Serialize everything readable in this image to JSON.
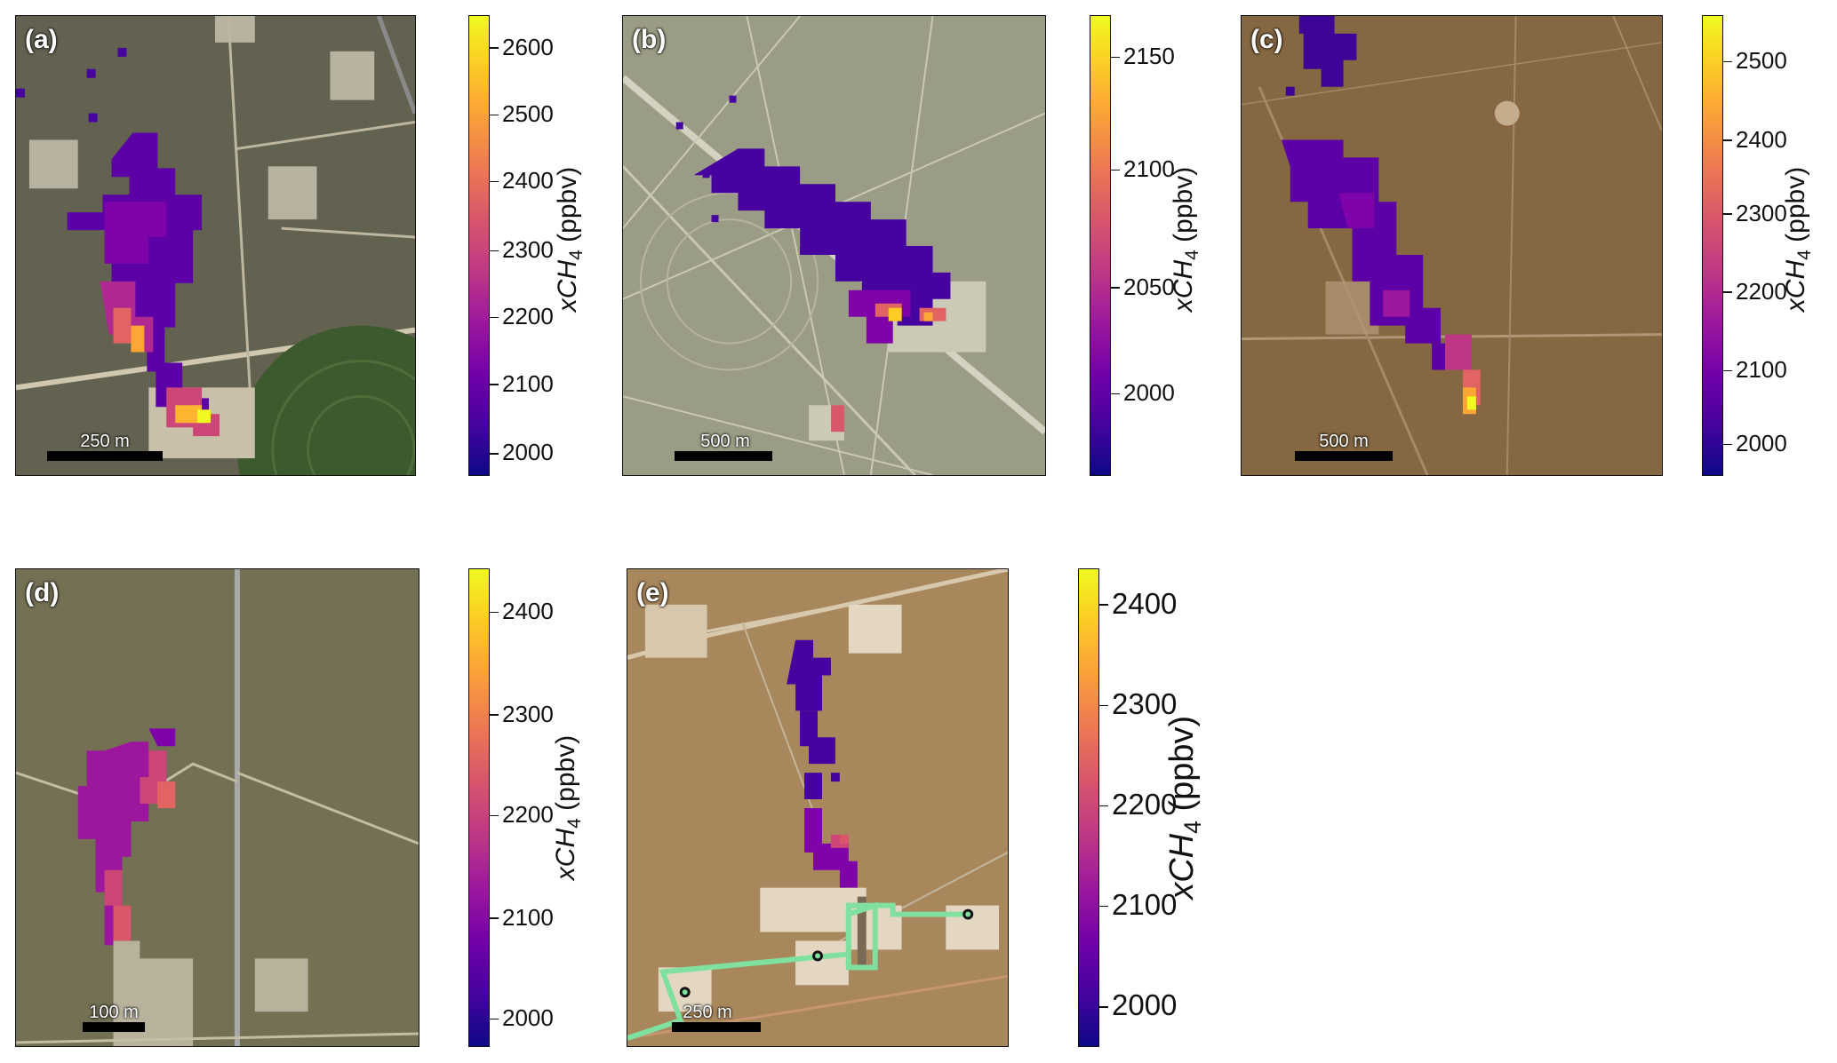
{
  "panels": [
    {
      "label": "(a)",
      "scale": "250 m",
      "colorbar": {
        "ticks": [
          "2000",
          "2100",
          "2200",
          "2300",
          "2400",
          "2500",
          "2600"
        ],
        "label_prefix": "xCH",
        "label_sub": "4",
        "label_suffix": " (ppbv)"
      }
    },
    {
      "label": "(b)",
      "scale": "500 m",
      "colorbar": {
        "ticks": [
          "2000",
          "2050",
          "2100",
          "2150"
        ],
        "label_prefix": "xCH",
        "label_sub": "4",
        "label_suffix": " (ppbv)"
      }
    },
    {
      "label": "(c)",
      "scale": "500 m",
      "colorbar": {
        "ticks": [
          "2000",
          "2100",
          "2200",
          "2300",
          "2400",
          "2500"
        ],
        "label_prefix": "xCH",
        "label_sub": "4",
        "label_suffix": " (ppbv)"
      }
    },
    {
      "label": "(d)",
      "scale": "100 m",
      "colorbar": {
        "ticks": [
          "2000",
          "2100",
          "2200",
          "2300",
          "2400"
        ],
        "label_prefix": "xCH",
        "label_sub": "4",
        "label_suffix": " (ppbv)"
      }
    },
    {
      "label": "(e)",
      "scale": "250 m",
      "colorbar": {
        "ticks": [
          "2000",
          "2100",
          "2200",
          "2300",
          "2400"
        ],
        "label_prefix": "xCH",
        "label_sub": "4",
        "label_suffix": " (ppbv)"
      }
    }
  ],
  "colormap": "plasma"
}
